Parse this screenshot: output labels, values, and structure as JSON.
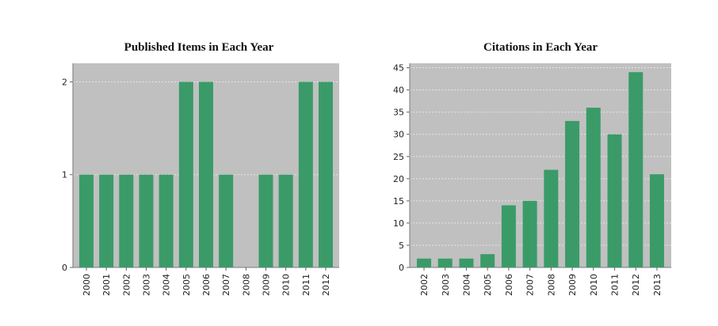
{
  "chart_data": [
    {
      "type": "bar",
      "title": "Published Items in Each Year",
      "xlabel": "",
      "ylabel": "",
      "categories": [
        "2000",
        "2001",
        "2002",
        "2003",
        "2004",
        "2005",
        "2006",
        "2007",
        "2008",
        "2009",
        "2010",
        "2011",
        "2012"
      ],
      "values": [
        1,
        1,
        1,
        1,
        1,
        2,
        2,
        1,
        0,
        1,
        1,
        2,
        2
      ],
      "ylim": [
        0,
        2.2
      ],
      "yticks": [
        0,
        1,
        2
      ],
      "grid": true,
      "colors": {
        "bar": "#3a9b68",
        "plot_bg": "#c0c0c0",
        "grid": "#e6e6e6"
      }
    },
    {
      "type": "bar",
      "title": "Citations in Each Year",
      "xlabel": "",
      "ylabel": "",
      "categories": [
        "2002",
        "2003",
        "2004",
        "2005",
        "2006",
        "2007",
        "2008",
        "2009",
        "2010",
        "2011",
        "2012",
        "2013"
      ],
      "values": [
        2,
        2,
        2,
        3,
        14,
        15,
        22,
        33,
        36,
        30,
        44,
        21
      ],
      "ylim": [
        0,
        46
      ],
      "yticks": [
        0,
        5,
        10,
        15,
        20,
        25,
        30,
        35,
        40,
        45
      ],
      "grid": true,
      "colors": {
        "bar": "#3a9b68",
        "plot_bg": "#c0c0c0",
        "grid": "#e6e6e6"
      }
    }
  ]
}
